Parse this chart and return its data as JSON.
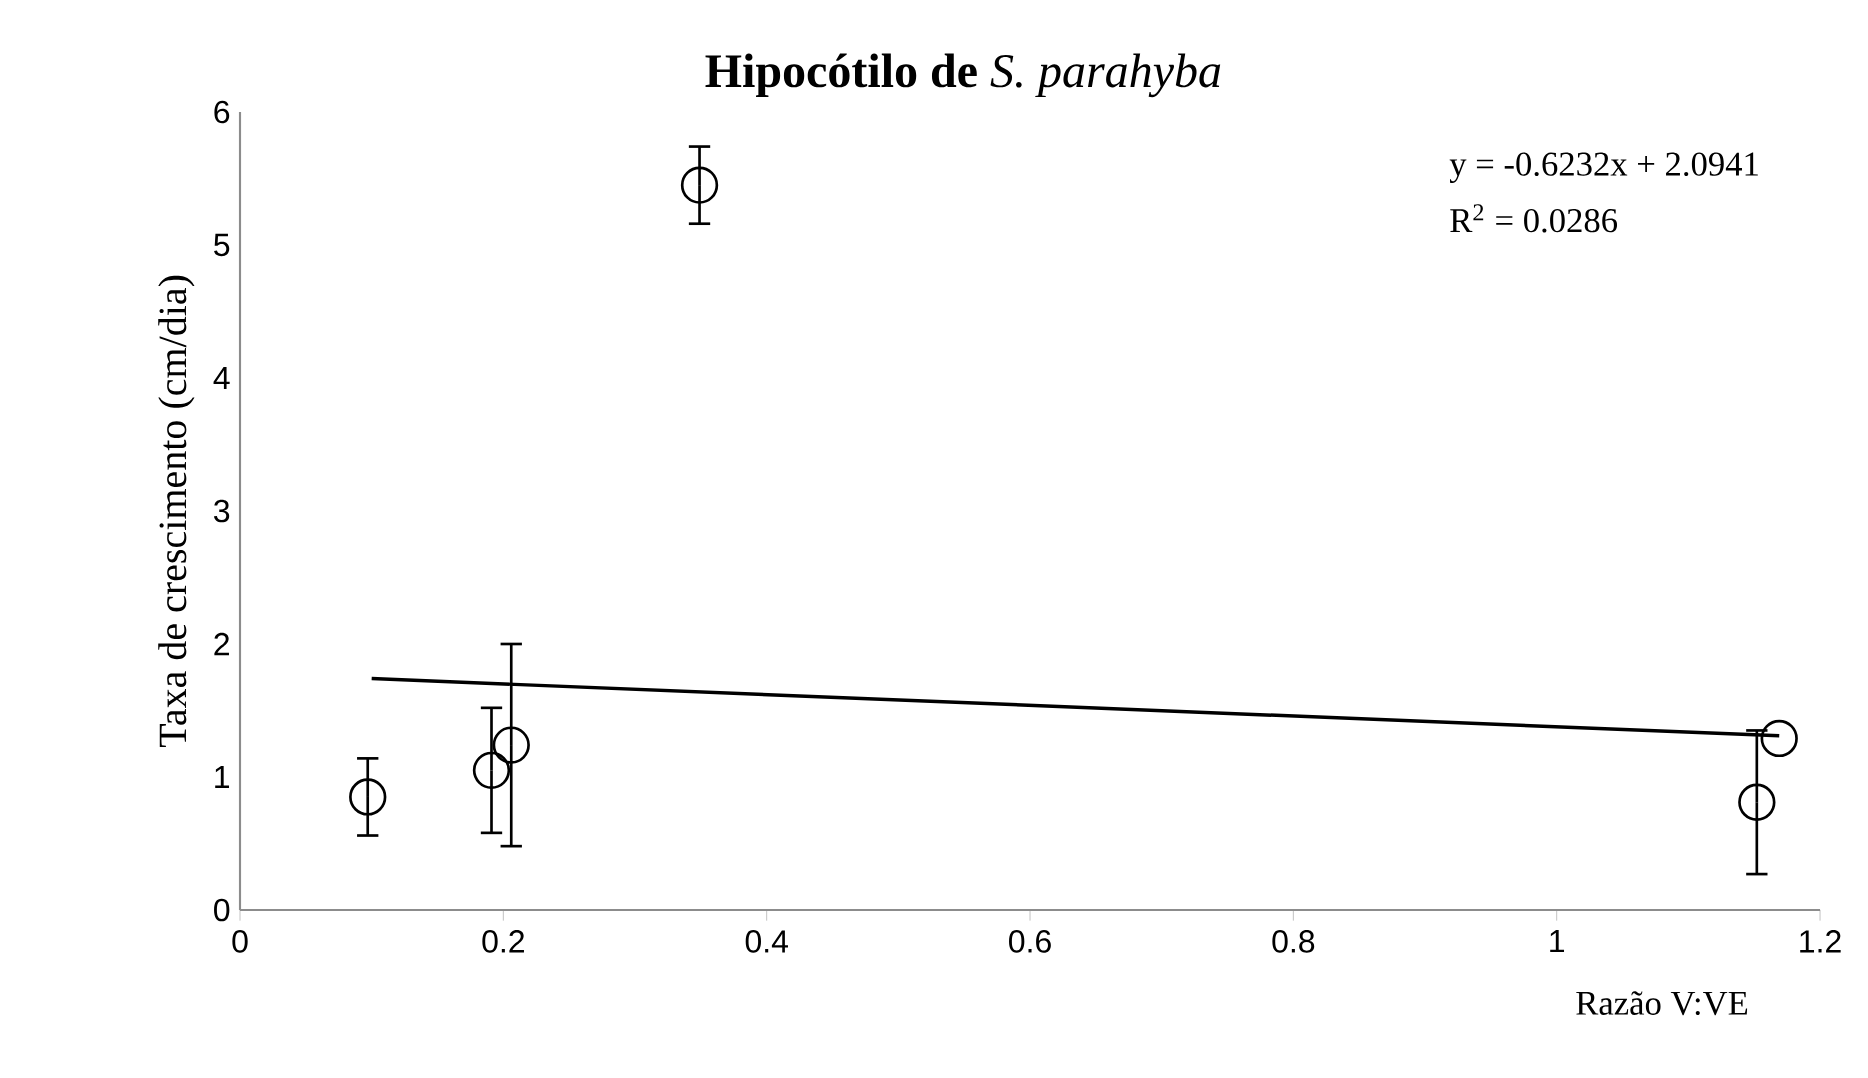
{
  "chart_data": {
    "type": "scatter",
    "title": "**Hipocótilo de** *S. parahyba*",
    "xlabel": "Razão V:VE",
    "ylabel": "Taxa de crescimento (cm/dia)",
    "series": [
      {
        "marker": "circle",
        "color": "#000000",
        "x": [
          0.097,
          0.191,
          0.206,
          0.349,
          1.152,
          1.169
        ],
        "values": [
          0.85,
          1.05,
          1.24,
          5.45,
          0.81,
          1.29
        ],
        "errors": [
          0.29,
          0.47,
          0.76,
          0.29,
          0.54,
          null
        ]
      },
      {
        "type": "line",
        "marker": "none",
        "color": "#000000",
        "x": [
          0.1,
          1.169
        ],
        "values": [
          1.74,
          1.31
        ]
      }
    ],
    "annotations": [
      "y = -0.6232x + 2.0941",
      "R$^{2}$ = 0.0286"
    ],
    "xlim": [
      0,
      1.2
    ],
    "ylim": [
      0,
      6
    ],
    "xticks": [
      0,
      0.2,
      0.4,
      0.6,
      0.8,
      1,
      1.2
    ],
    "yticks": [
      0,
      1,
      2,
      3,
      4,
      5,
      6
    ],
    "grid": false,
    "legend": false
  }
}
